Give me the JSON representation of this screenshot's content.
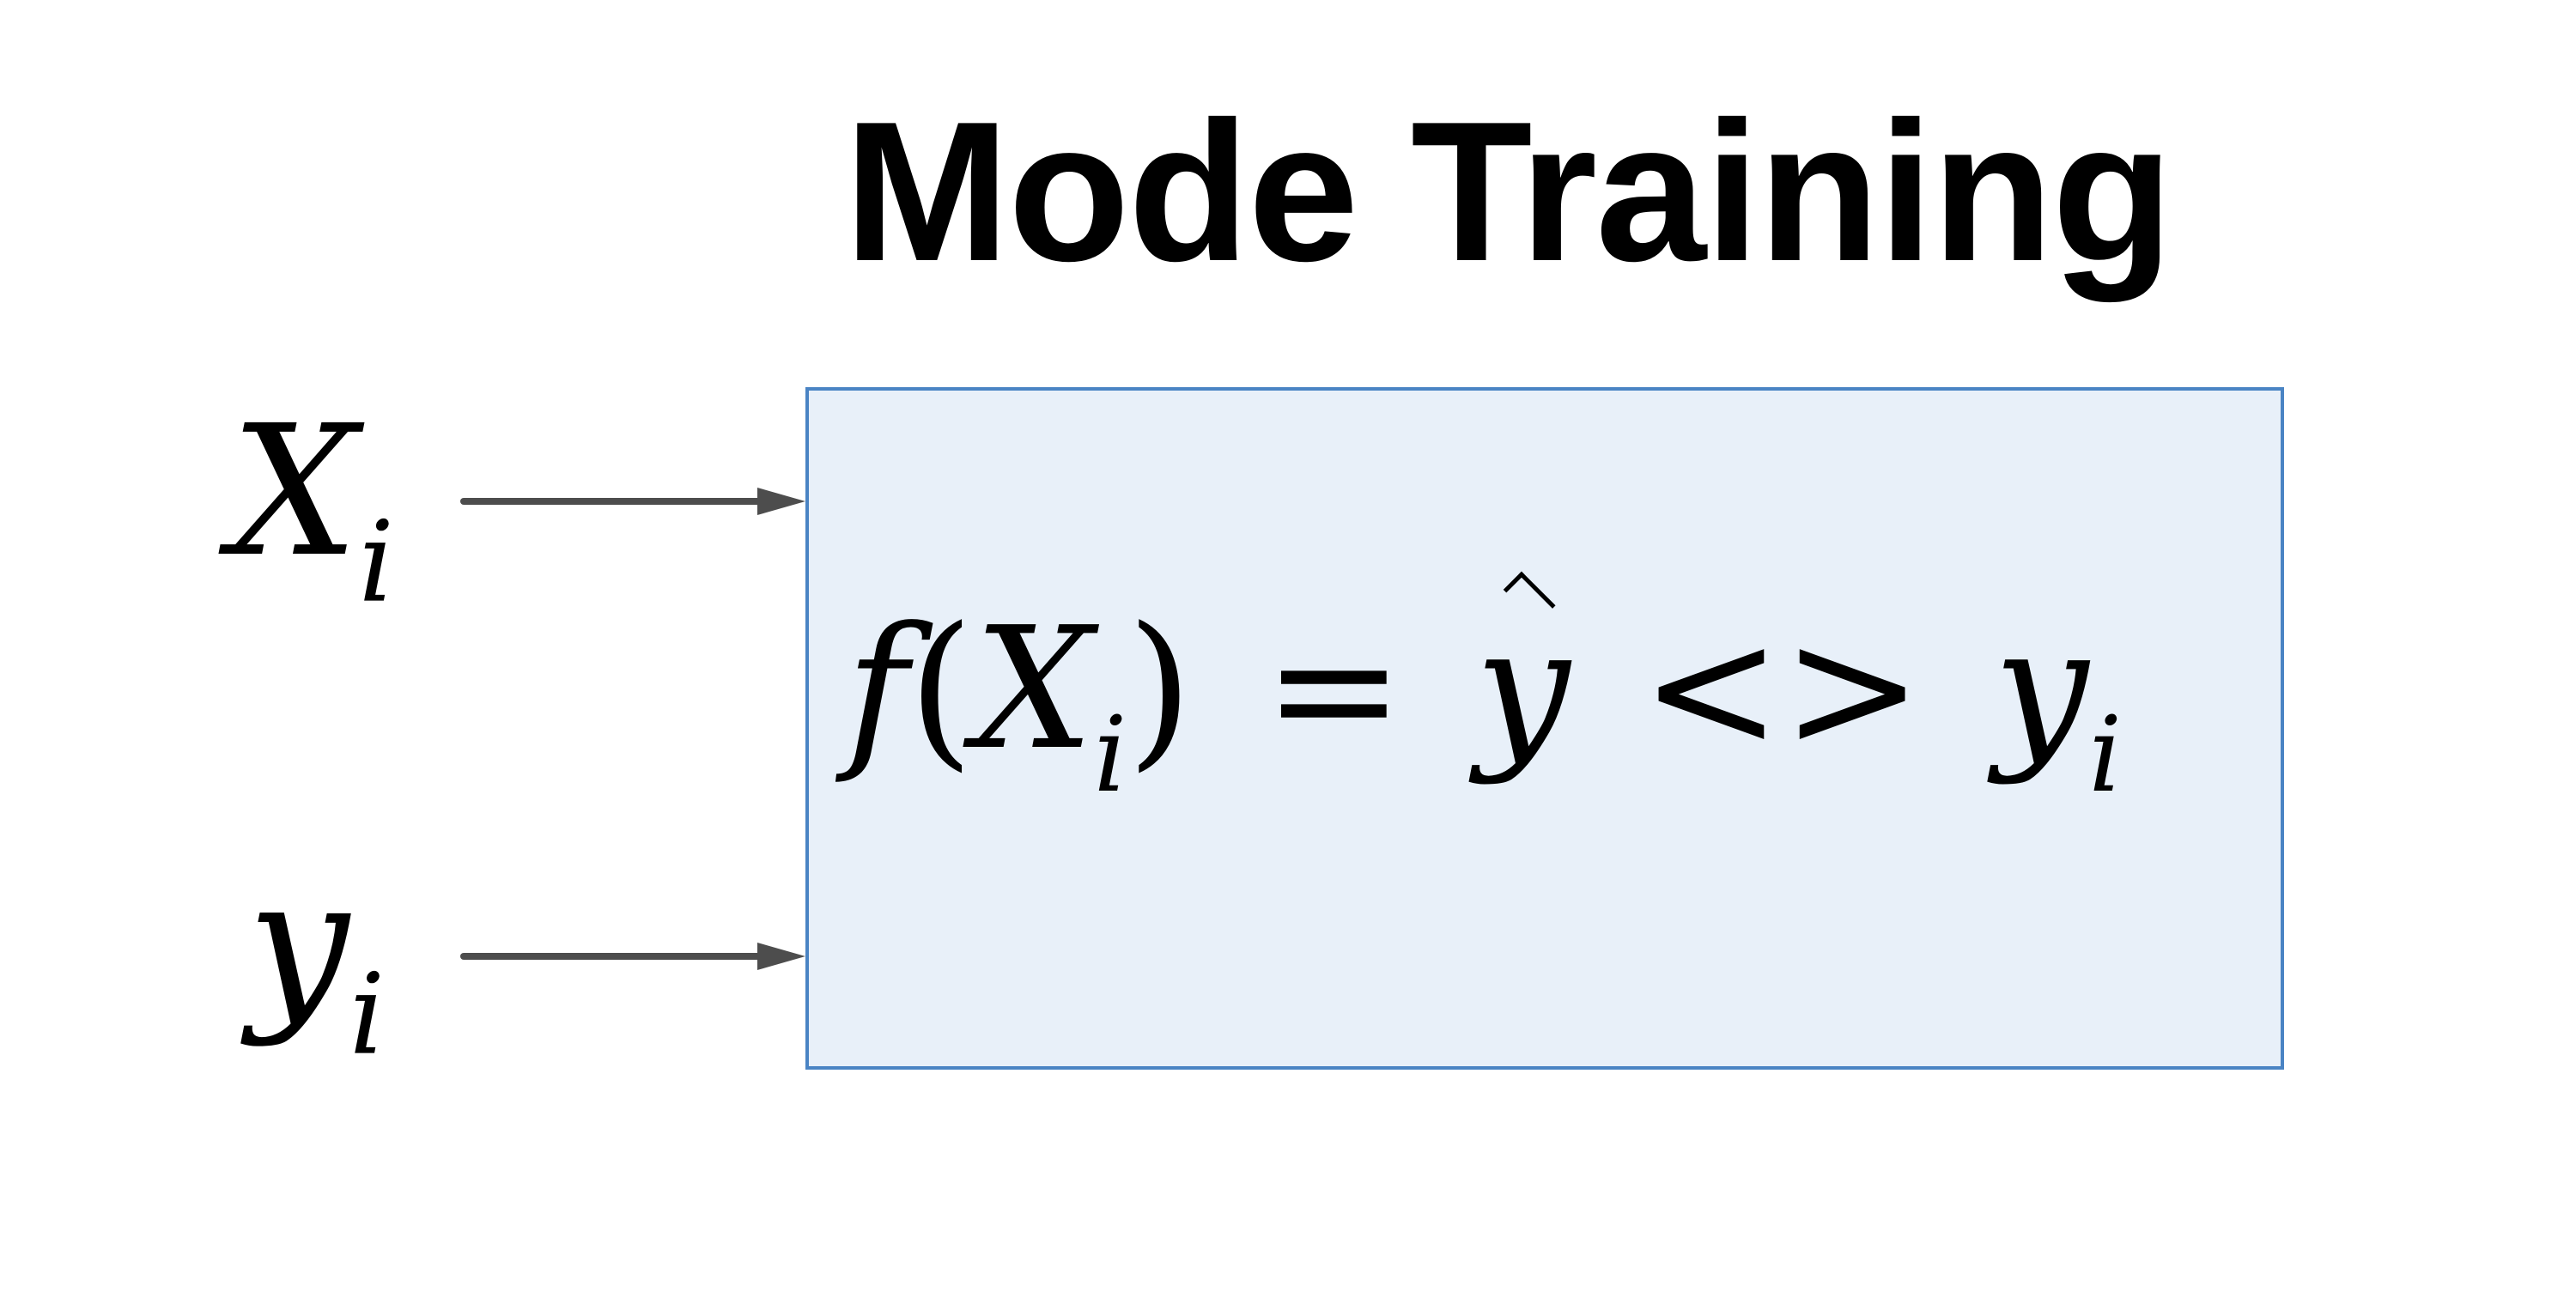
{
  "diagram": {
    "title": "Mode Training",
    "inputs": [
      {
        "symbol": "X",
        "subscript": "i"
      },
      {
        "symbol": "y",
        "subscript": "i"
      }
    ],
    "model_box": {
      "func": "f",
      "open_paren": "(",
      "arg_symbol": "X",
      "arg_subscript": "i",
      "close_paren": ")",
      "equals": "=",
      "prediction": "y",
      "compare": "<>",
      "target_symbol": "y",
      "target_subscript": "i"
    },
    "colors": {
      "box_fill": "#e8f0f9",
      "box_border": "#4a84c4",
      "arrow": "#4d4d4d",
      "text": "#000000"
    }
  }
}
